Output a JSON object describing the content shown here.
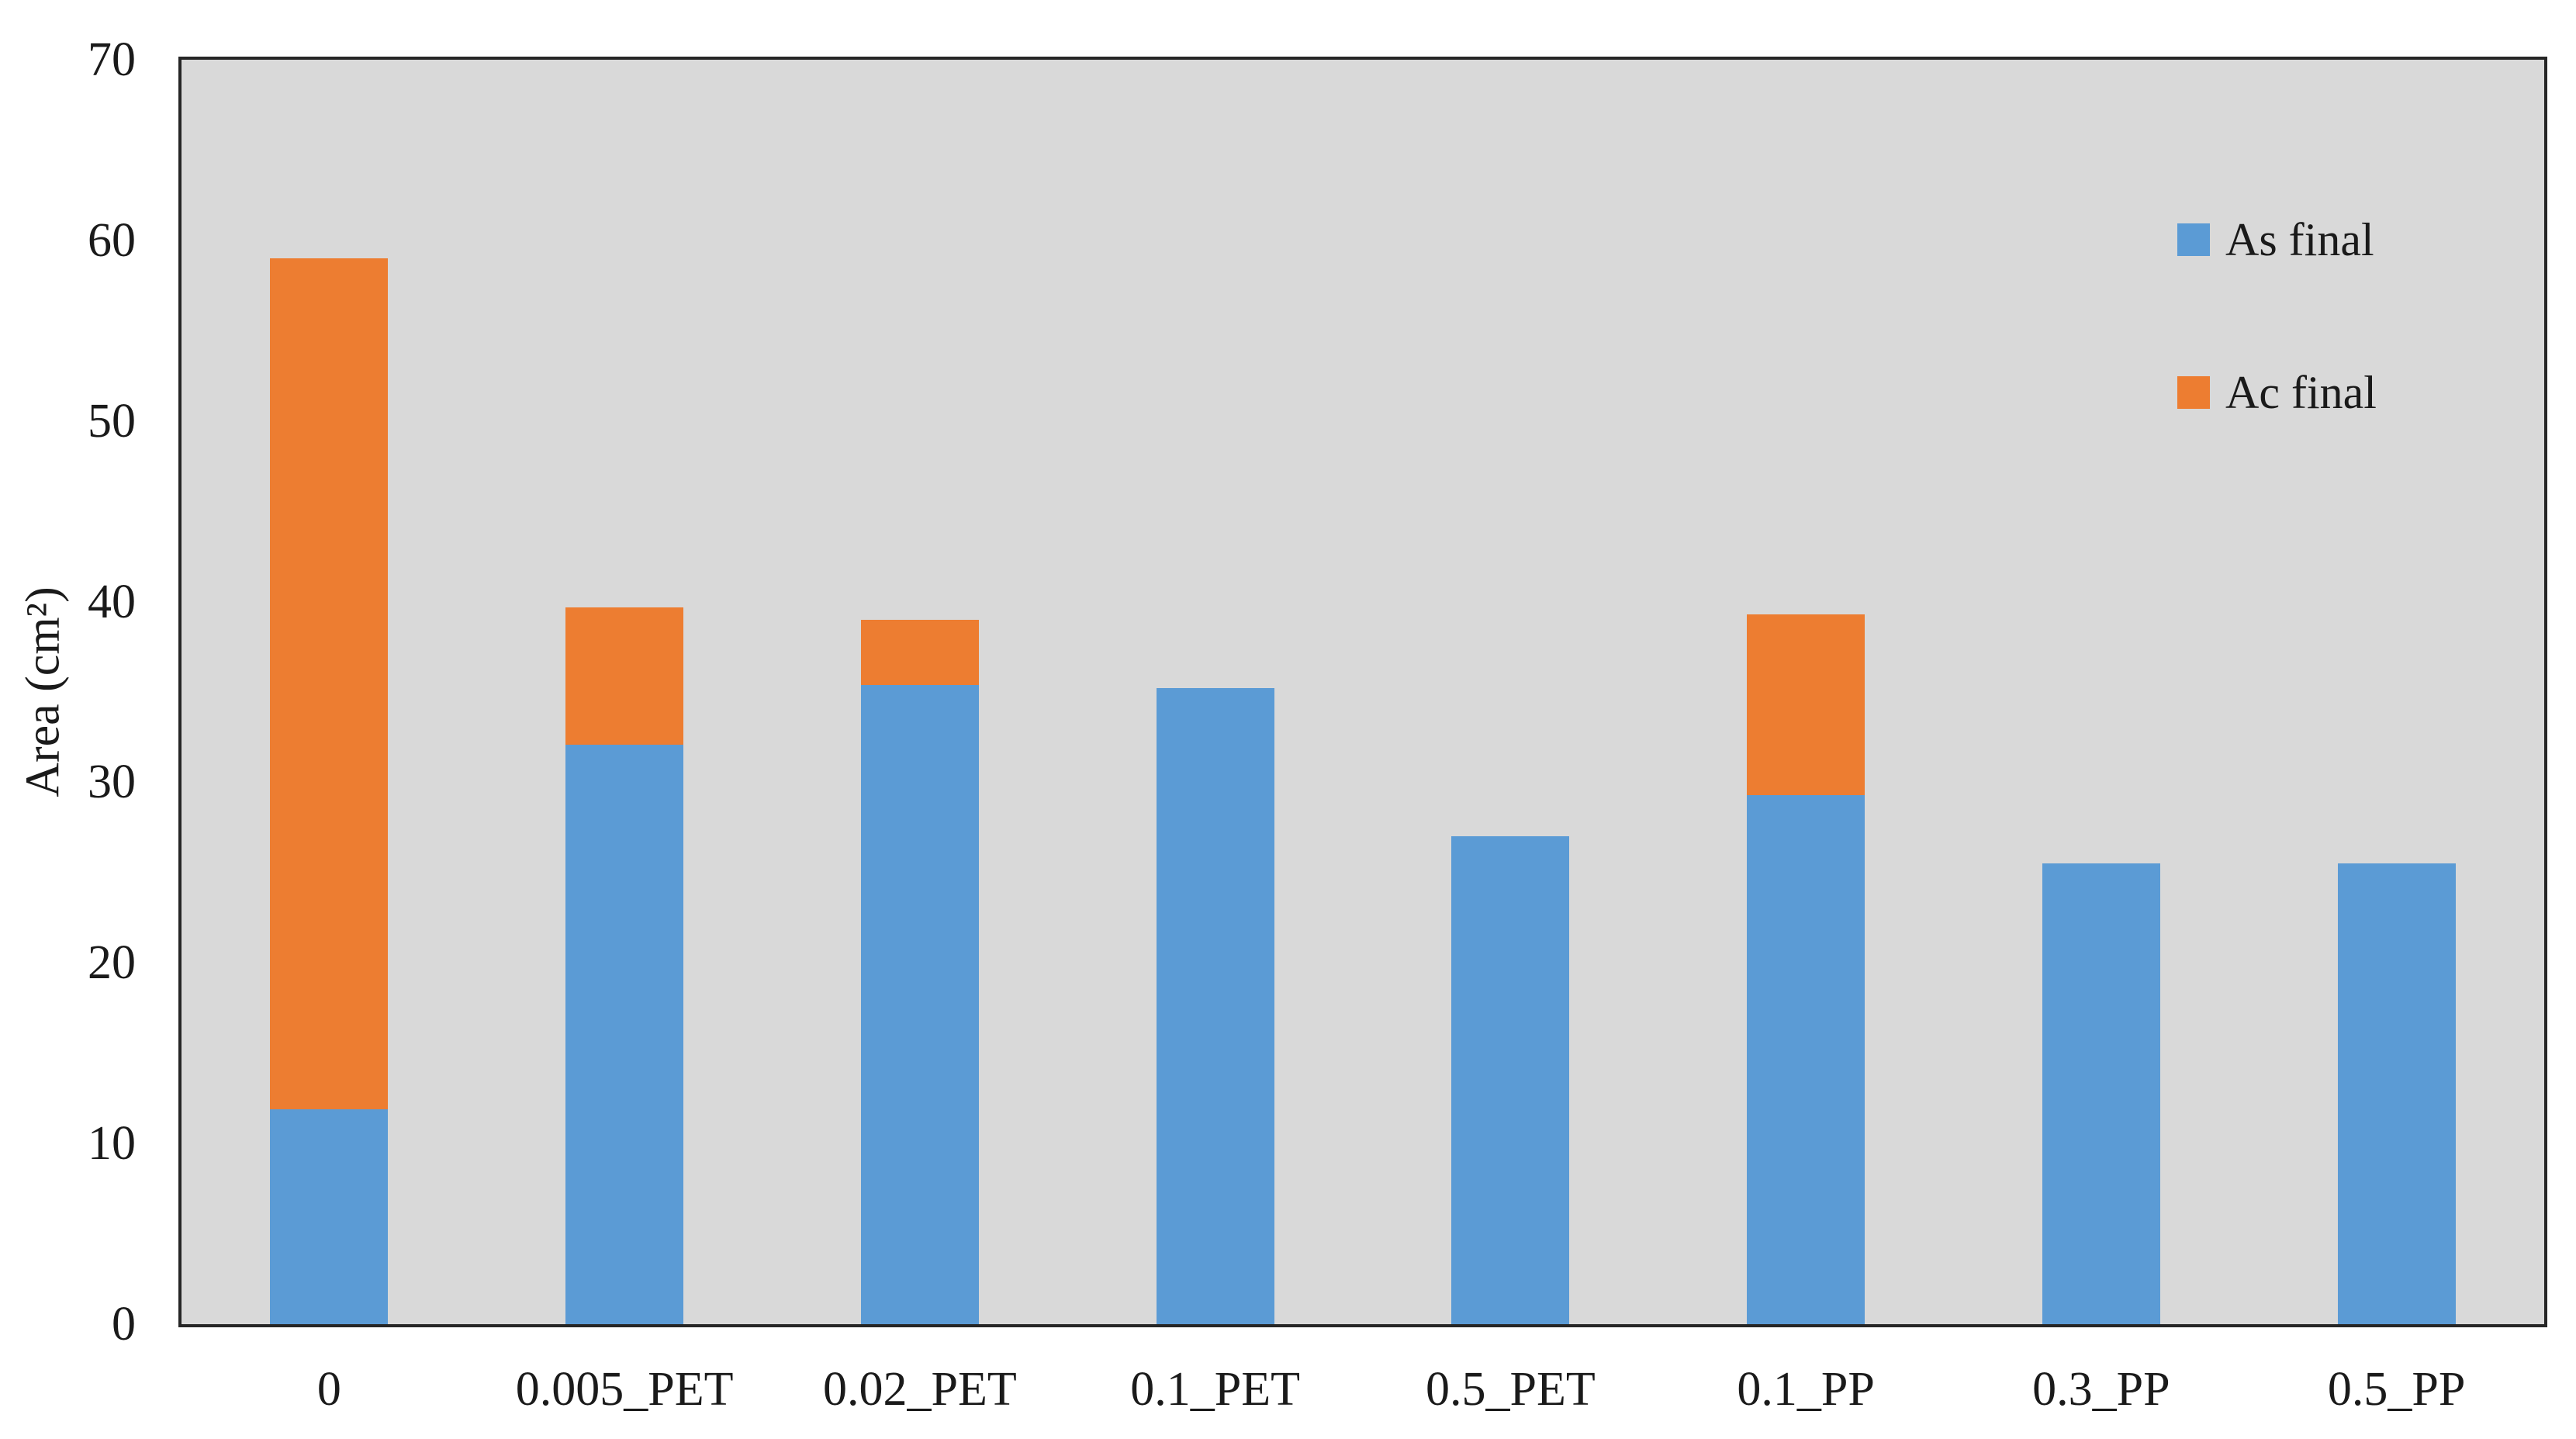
{
  "chart_data": {
    "type": "bar",
    "stacked": true,
    "title": "",
    "xlabel": "",
    "ylabel": "Area (cm²)",
    "ylim": [
      0,
      70
    ],
    "yticks": [
      0,
      10,
      20,
      30,
      40,
      50,
      60,
      70
    ],
    "grid": false,
    "plot_background": "#D9D9D9",
    "plot_border_color": "#262626",
    "legend_position": "right-inside",
    "categories": [
      "0",
      "0.005_PET",
      "0.02_PET",
      "0.1_PET",
      "0.5_PET",
      "0.1_PP",
      "0.3_PP",
      "0.5_PP"
    ],
    "series": [
      {
        "name": "As final",
        "color": "#5B9BD5",
        "values": [
          11.9,
          32.1,
          35.4,
          35.2,
          27.0,
          29.3,
          25.5,
          25.5
        ]
      },
      {
        "name": "Ac final",
        "color": "#ED7D31",
        "values": [
          47.1,
          7.6,
          3.6,
          0,
          0,
          10.0,
          0,
          0
        ]
      }
    ],
    "stacked_totals": [
      59.0,
      39.7,
      39.0,
      35.2,
      27.0,
      39.3,
      25.5,
      25.5
    ]
  },
  "legend": {
    "items": [
      {
        "label": "As final",
        "color": "#5B9BD5"
      },
      {
        "label": "Ac final",
        "color": "#ED7D31"
      }
    ]
  }
}
